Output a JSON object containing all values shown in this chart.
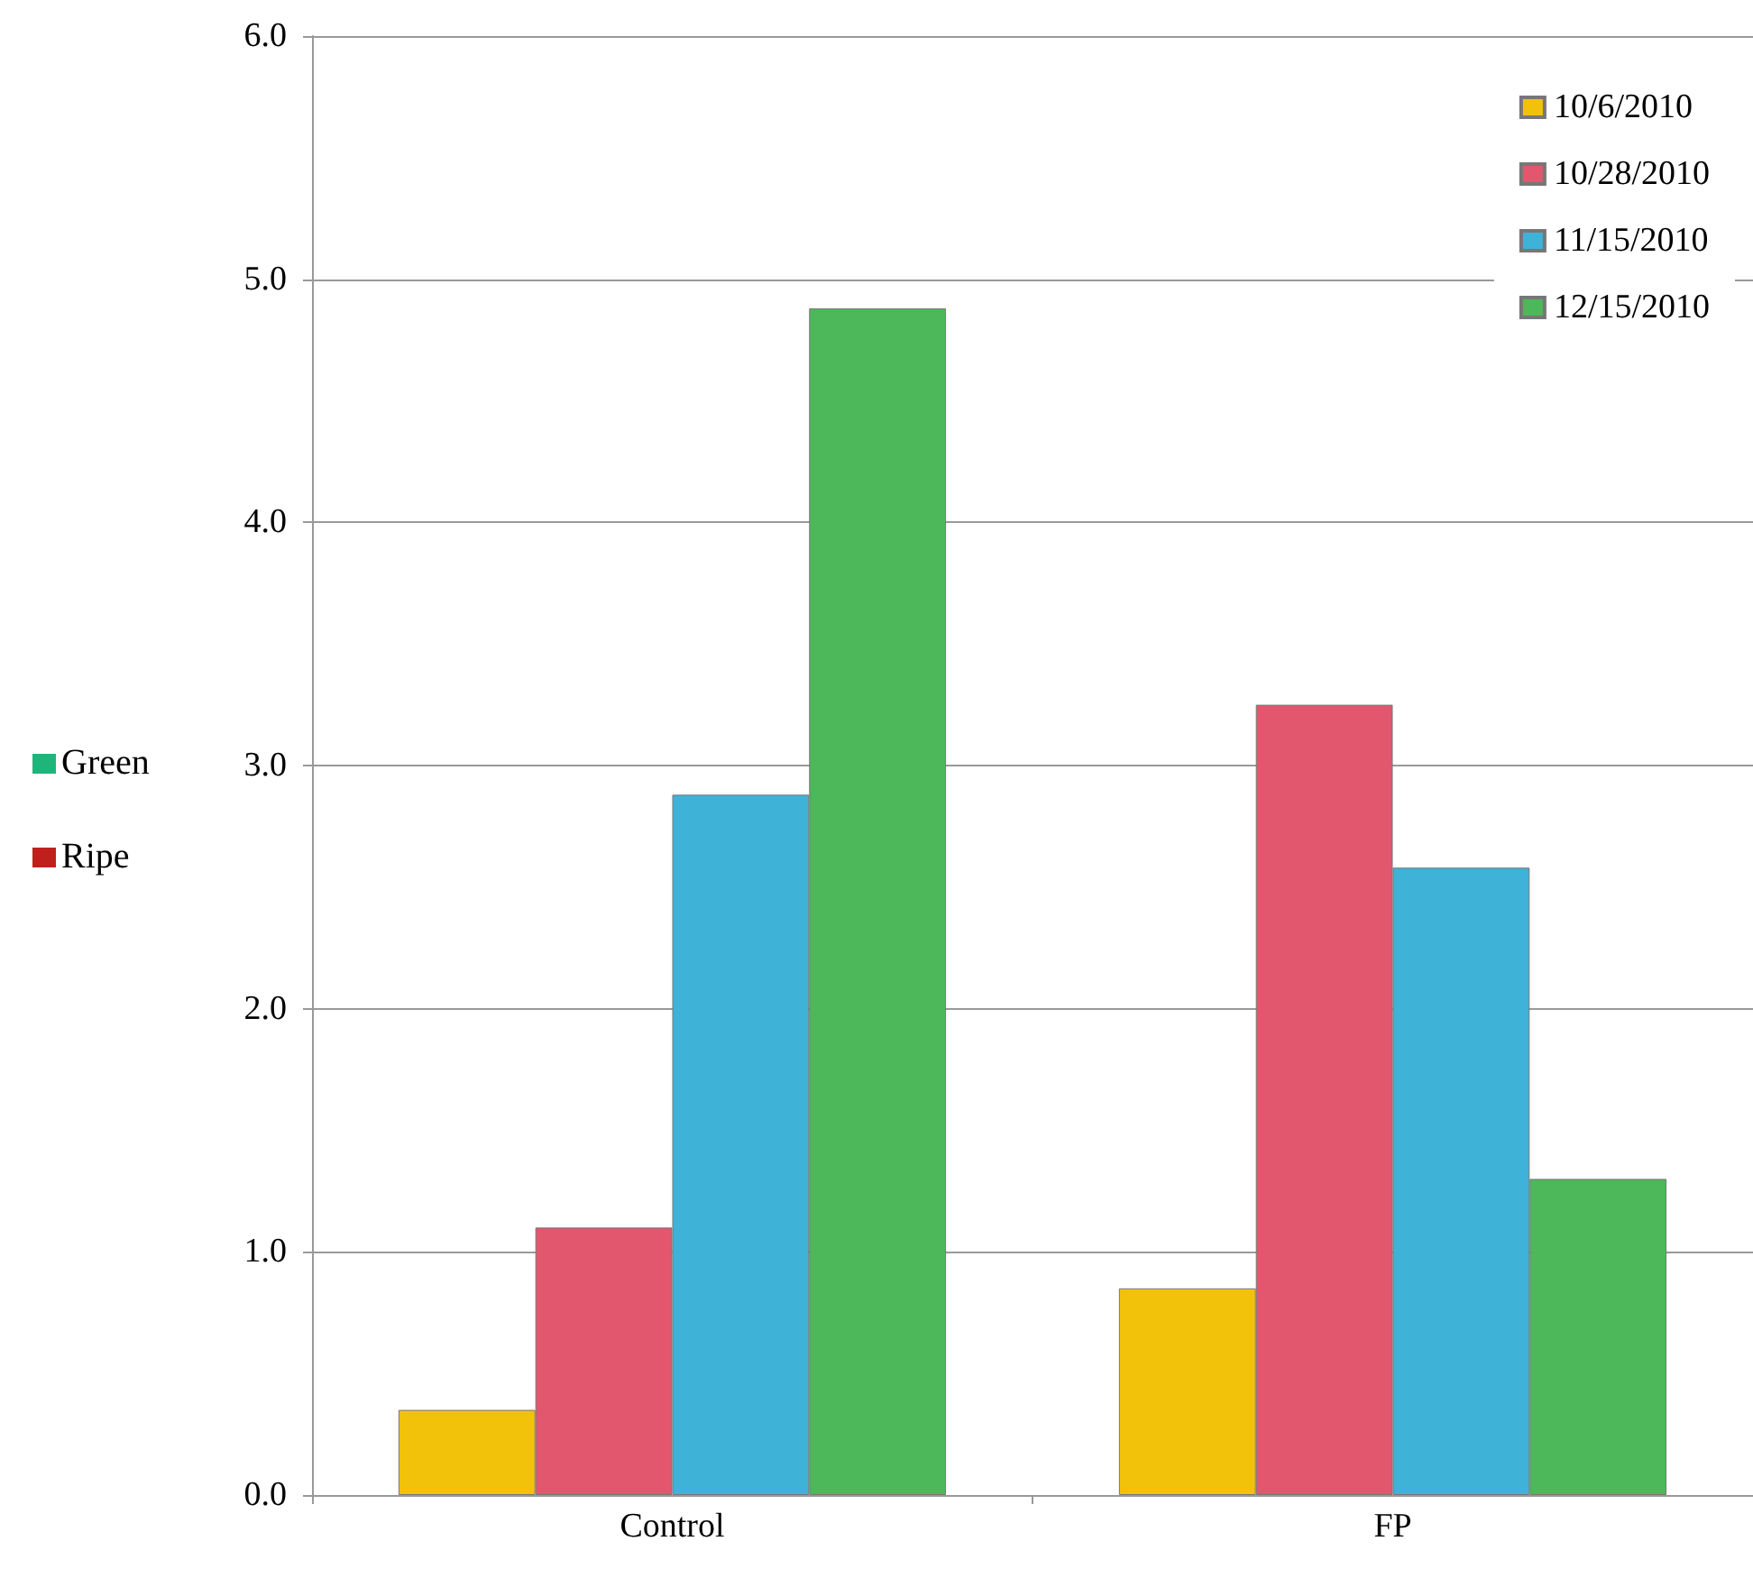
{
  "chart_data": {
    "type": "bar",
    "categories": [
      "Control",
      "FP"
    ],
    "series": [
      {
        "name": "10/6/2010",
        "color": "#f2c20a",
        "values": [
          0.35,
          0.85
        ]
      },
      {
        "name": "10/28/2010",
        "color": "#e2566e",
        "values": [
          1.1,
          3.25
        ]
      },
      {
        "name": "11/15/2010",
        "color": "#3fb2d8",
        "values": [
          2.88,
          2.58
        ]
      },
      {
        "name": "12/15/2010",
        "color": "#4cb85a",
        "values": [
          4.88,
          1.3
        ]
      }
    ],
    "ylim": [
      0,
      6
    ],
    "yticks": [
      {
        "value": 0,
        "label": "0.0"
      },
      {
        "value": 1,
        "label": "1.0"
      },
      {
        "value": 2,
        "label": "2.0"
      },
      {
        "value": 3,
        "label": "3.0"
      },
      {
        "value": 4,
        "label": "4.0"
      },
      {
        "value": 5,
        "label": "5.0"
      },
      {
        "value": 6,
        "label": "6.0"
      }
    ],
    "grid": "y",
    "legend": "top right",
    "annotations": [
      "Green",
      "Ripe"
    ]
  }
}
